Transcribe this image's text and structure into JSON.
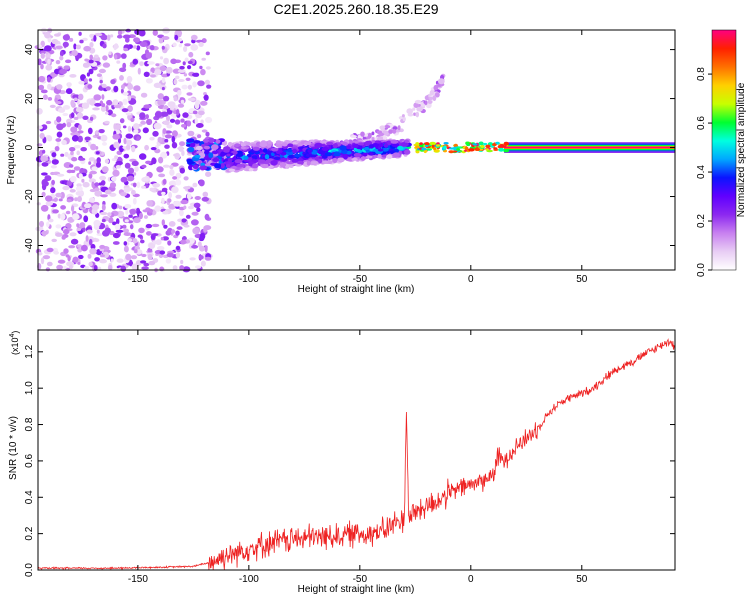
{
  "title": "C2E1.2025.260.18.35.E29",
  "chart_data": [
    {
      "type": "heatmap",
      "title": "C2E1.2025.260.18.35.E29",
      "xlabel": "Height of straight line (km)",
      "ylabel": "Frequency (Hz)",
      "xlim": [
        -195,
        92
      ],
      "ylim": [
        -50,
        48
      ],
      "xticks": [
        -150,
        -100,
        -50,
        0,
        50
      ],
      "yticks": [
        -40,
        -20,
        0,
        20,
        40
      ],
      "colorbar": {
        "label": "Normalized spectral amplitude",
        "range": [
          0.0,
          0.98
        ],
        "ticks": [
          0.0,
          0.2,
          0.4,
          0.6,
          0.8
        ],
        "tick_labels": [
          "0.0",
          "0.2",
          "0.4",
          "0.6",
          "0.8"
        ],
        "colors": [
          "#ffffff",
          "#e8cdf4",
          "#c880f0",
          "#8c28f0",
          "#6000ff",
          "#0a14ff",
          "#00a8ff",
          "#00ffe0",
          "#00ff30",
          "#c8ff00",
          "#ffd000",
          "#ff7000",
          "#ff2000",
          "#ff0080"
        ]
      },
      "features": [
        {
          "name": "noise field",
          "x_range": [
            -195,
            -118
          ],
          "freq_range": [
            -50,
            48
          ],
          "max_amplitude": 0.25
        },
        {
          "name": "signal band onset",
          "x_range": [
            -127,
            -110
          ],
          "center_hz": -3,
          "half_width_hz": 6,
          "max_amplitude": 0.45
        },
        {
          "name": "signal band",
          "x_range": [
            -110,
            -28
          ],
          "center_hz_start": -4,
          "center_hz_end": 0,
          "half_width_hz_start": 6,
          "half_width_hz_end": 3,
          "max_amplitude": 0.6
        },
        {
          "name": "upper spur",
          "x_range": [
            -55,
            -12
          ],
          "freq_start_hz": 2,
          "freq_end_hz": 28,
          "max_amplitude": 0.2
        },
        {
          "name": "coherent line",
          "x_range": [
            -25,
            92
          ],
          "center_hz": 0,
          "max_amplitude": 0.98
        }
      ]
    },
    {
      "type": "line",
      "xlabel": "Height of straight line (km)",
      "ylabel": "SNR (10 * v/v)",
      "y_multiplier": "(x10",
      "y_multiplier_exponent": "4",
      "y_multiplier_close": ")",
      "xlim": [
        -195,
        92
      ],
      "ylim": [
        0,
        1.32
      ],
      "xticks": [
        -150,
        -100,
        -50,
        0,
        50
      ],
      "yticks": [
        0.0,
        0.2,
        0.4,
        0.6,
        0.8,
        1.0,
        1.2
      ],
      "ytick_labels": [
        "0.0",
        "0.2",
        "0.4",
        "0.6",
        "0.8",
        "1.0",
        "1.2"
      ],
      "line_color": "#ee2222",
      "series": [
        {
          "name": "SNR",
          "x": [
            -195,
            -180,
            -160,
            -140,
            -125,
            -118,
            -110,
            -100,
            -90,
            -80,
            -70,
            -60,
            -50,
            -40,
            -35,
            -30,
            -29,
            -28,
            -27,
            -25,
            -20,
            -15,
            -10,
            -5,
            0,
            5,
            10,
            12,
            15,
            20,
            25,
            30,
            35,
            40,
            45,
            50,
            55,
            60,
            65,
            70,
            75,
            80,
            85,
            88,
            90,
            92
          ],
          "y": [
            0.01,
            0.01,
            0.01,
            0.015,
            0.02,
            0.04,
            0.08,
            0.12,
            0.15,
            0.17,
            0.18,
            0.19,
            0.2,
            0.21,
            0.25,
            0.28,
            0.88,
            0.3,
            0.3,
            0.32,
            0.35,
            0.38,
            0.42,
            0.45,
            0.47,
            0.49,
            0.52,
            0.62,
            0.6,
            0.68,
            0.72,
            0.78,
            0.86,
            0.92,
            0.95,
            0.97,
            1.0,
            1.05,
            1.1,
            1.13,
            1.16,
            1.2,
            1.23,
            1.25,
            1.26,
            1.22
          ]
        }
      ]
    }
  ]
}
